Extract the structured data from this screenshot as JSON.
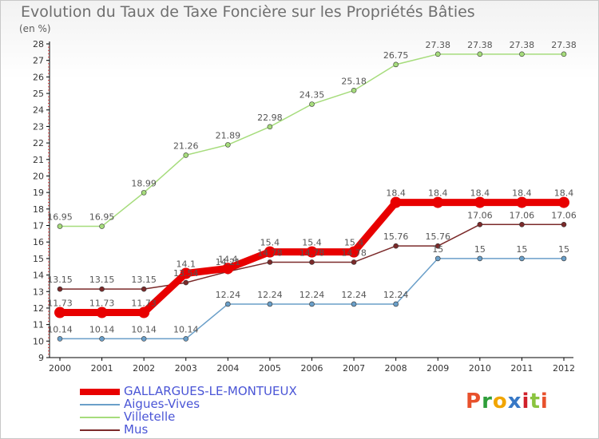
{
  "title": "Evolution du Taux de Taxe Foncière sur les Propriétés Bâties",
  "subtitle": "(en %)",
  "logo": {
    "text": "Proxiti",
    "colors": [
      "#e8512c",
      "#2e9e3a",
      "#f1a500",
      "#3778c6",
      "#d0202a",
      "#8bc43f",
      "#e8512c"
    ]
  },
  "chart_data": {
    "type": "line",
    "x": [
      "2000",
      "2001",
      "2002",
      "2003",
      "2004",
      "2005",
      "2006",
      "2007",
      "2008",
      "2009",
      "2010",
      "2011",
      "2012"
    ],
    "ylim": [
      9,
      28
    ],
    "yticks": [
      "9",
      "10",
      "11",
      "12",
      "13",
      "14",
      "15",
      "16",
      "17",
      "18",
      "19",
      "20",
      "21",
      "22",
      "23",
      "24",
      "25",
      "26",
      "27",
      "28"
    ],
    "grid": false,
    "legend_position": "bottom-left",
    "series": [
      {
        "name": "GALLARGUES-LE-MONTUEUX",
        "color": "#e80000",
        "values": [
          11.73,
          11.73,
          11.73,
          14.1,
          14.4,
          15.4,
          15.4,
          15.4,
          18.4,
          18.4,
          18.4,
          18.4,
          18.4
        ],
        "labels": [
          "11.73",
          "11.73",
          "11.73",
          "14.1",
          "14.4",
          "15.4",
          "15.4",
          "15.4",
          "18.4",
          "18.4",
          "18.4",
          "18.4",
          "18.4"
        ]
      },
      {
        "name": "Aigues-Vives",
        "color": "#6a9fc9",
        "values": [
          10.14,
          10.14,
          10.14,
          10.14,
          12.24,
          12.24,
          12.24,
          12.24,
          12.24,
          15,
          15,
          15,
          15
        ],
        "labels": [
          "10.14",
          "10.14",
          "10.14",
          "10.14",
          "12.24",
          "12.24",
          "12.24",
          "12.24",
          "12.24",
          "15",
          "15",
          "15",
          "15"
        ]
      },
      {
        "name": "Villetelle",
        "color": "#a6dc7c",
        "values": [
          16.95,
          16.95,
          18.99,
          21.26,
          21.89,
          22.98,
          24.35,
          25.18,
          26.75,
          27.38,
          27.38,
          27.38,
          27.38
        ],
        "labels": [
          "16.95",
          "16.95",
          "18.99",
          "21.26",
          "21.89",
          "22.98",
          "24.35",
          "25.18",
          "26.75",
          "27.38",
          "27.38",
          "27.38",
          "27.38"
        ]
      },
      {
        "name": "Mus",
        "color": "#7b2a2a",
        "values": [
          13.15,
          13.15,
          13.15,
          13.54,
          14.21,
          14.78,
          14.78,
          14.78,
          15.76,
          15.76,
          17.06,
          17.06,
          17.06
        ],
        "labels": [
          "13.15",
          "13.15",
          "13.15",
          "13.54",
          "14.21",
          "14.78",
          "14.78",
          "14.78",
          "15.76",
          "15.76",
          "17.06",
          "17.06",
          "17.06"
        ]
      }
    ]
  }
}
